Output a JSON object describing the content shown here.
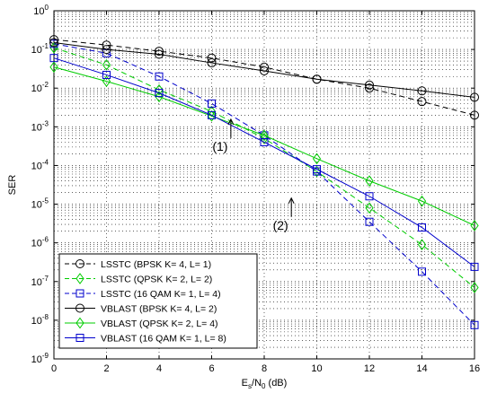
{
  "chart_data": {
    "type": "line",
    "xlabel": {
      "main": "E",
      "sub1": "s",
      "mid": "/N",
      "sub2": "0",
      "tail": " (dB)"
    },
    "ylabel": "SER",
    "xlim": [
      0,
      16
    ],
    "ylim_log10": [
      -9,
      0
    ],
    "y_scale": "log",
    "grid": true,
    "x_ticks": [
      0,
      2,
      4,
      6,
      8,
      10,
      12,
      14,
      16
    ],
    "x_tick_labels": [
      "0",
      "2",
      "4",
      "6",
      "8",
      "10",
      "12",
      "14",
      "16"
    ],
    "y_ticks": [
      0,
      -1,
      -2,
      -3,
      -4,
      -5,
      -6,
      -7,
      -8,
      -9
    ],
    "y_tick_labels": [
      {
        "base": "10",
        "exp": "0"
      },
      {
        "base": "10",
        "exp": "-1"
      },
      {
        "base": "10",
        "exp": "-2"
      },
      {
        "base": "10",
        "exp": "-3"
      },
      {
        "base": "10",
        "exp": "-4"
      },
      {
        "base": "10",
        "exp": "-5"
      },
      {
        "base": "10",
        "exp": "-6"
      },
      {
        "base": "10",
        "exp": "-7"
      },
      {
        "base": "10",
        "exp": "-8"
      },
      {
        "base": "10",
        "exp": "-9"
      }
    ],
    "legend_position": "bottom-left",
    "series": [
      {
        "name": "LSSTC (BPSK K= 4, L= 1)",
        "color": "#000000",
        "dash": "dashed",
        "marker": "circle",
        "x": [
          0,
          2,
          4,
          6,
          8,
          10,
          12,
          14,
          16
        ],
        "y": [
          0.18,
          0.13,
          0.09,
          0.06,
          0.035,
          0.017,
          0.01,
          0.0045,
          0.002
        ]
      },
      {
        "name": "LSSTC (QPSK K= 2, L= 2)",
        "color": "#00cc00",
        "dash": "dashed",
        "marker": "diamond",
        "x": [
          0,
          2,
          4,
          6,
          8,
          10,
          12,
          14,
          16
        ],
        "y": [
          0.11,
          0.04,
          0.009,
          0.0025,
          0.0005,
          7e-05,
          8e-06,
          9e-07,
          7e-08
        ]
      },
      {
        "name": "LSSTC (16 QAM K= 1, L= 4)",
        "color": "#0000cc",
        "dash": "dashed",
        "marker": "square",
        "x": [
          0,
          2,
          4,
          6,
          8,
          10,
          12,
          14,
          16
        ],
        "y": [
          0.14,
          0.08,
          0.02,
          0.004,
          0.0006,
          7e-05,
          3.5e-06,
          1.8e-07,
          7.5e-09
        ]
      },
      {
        "name": "VBLAST (BPSK K= 4, L= 2)",
        "color": "#000000",
        "dash": "solid",
        "marker": "circle",
        "x": [
          0,
          2,
          4,
          6,
          8,
          10,
          12,
          14,
          16
        ],
        "y": [
          0.15,
          0.1,
          0.075,
          0.045,
          0.028,
          0.017,
          0.012,
          0.0085,
          0.0058
        ]
      },
      {
        "name": "VBLAST (QPSK K= 2, L= 4)",
        "color": "#00cc00",
        "dash": "solid",
        "marker": "diamond",
        "x": [
          0,
          2,
          4,
          6,
          8,
          10,
          12,
          14,
          16
        ],
        "y": [
          0.035,
          0.015,
          0.006,
          0.0019,
          0.0006,
          0.00015,
          4e-05,
          1.2e-05,
          2.8e-06
        ]
      },
      {
        "name": "VBLAST (16 QAM K= 1, L= 8)",
        "color": "#0000cc",
        "dash": "solid",
        "marker": "square",
        "x": [
          0,
          2,
          4,
          6,
          8,
          10,
          12,
          14,
          16
        ],
        "y": [
          0.06,
          0.022,
          0.0075,
          0.002,
          0.0004,
          8e-05,
          1.6e-05,
          2.5e-06,
          2.4e-07
        ]
      }
    ],
    "annotations": [
      {
        "text": "(1)",
        "x": 6.8,
        "y": 0.0012
      },
      {
        "text": "(2)",
        "x": 9.1,
        "y": 1.1e-05
      }
    ]
  }
}
